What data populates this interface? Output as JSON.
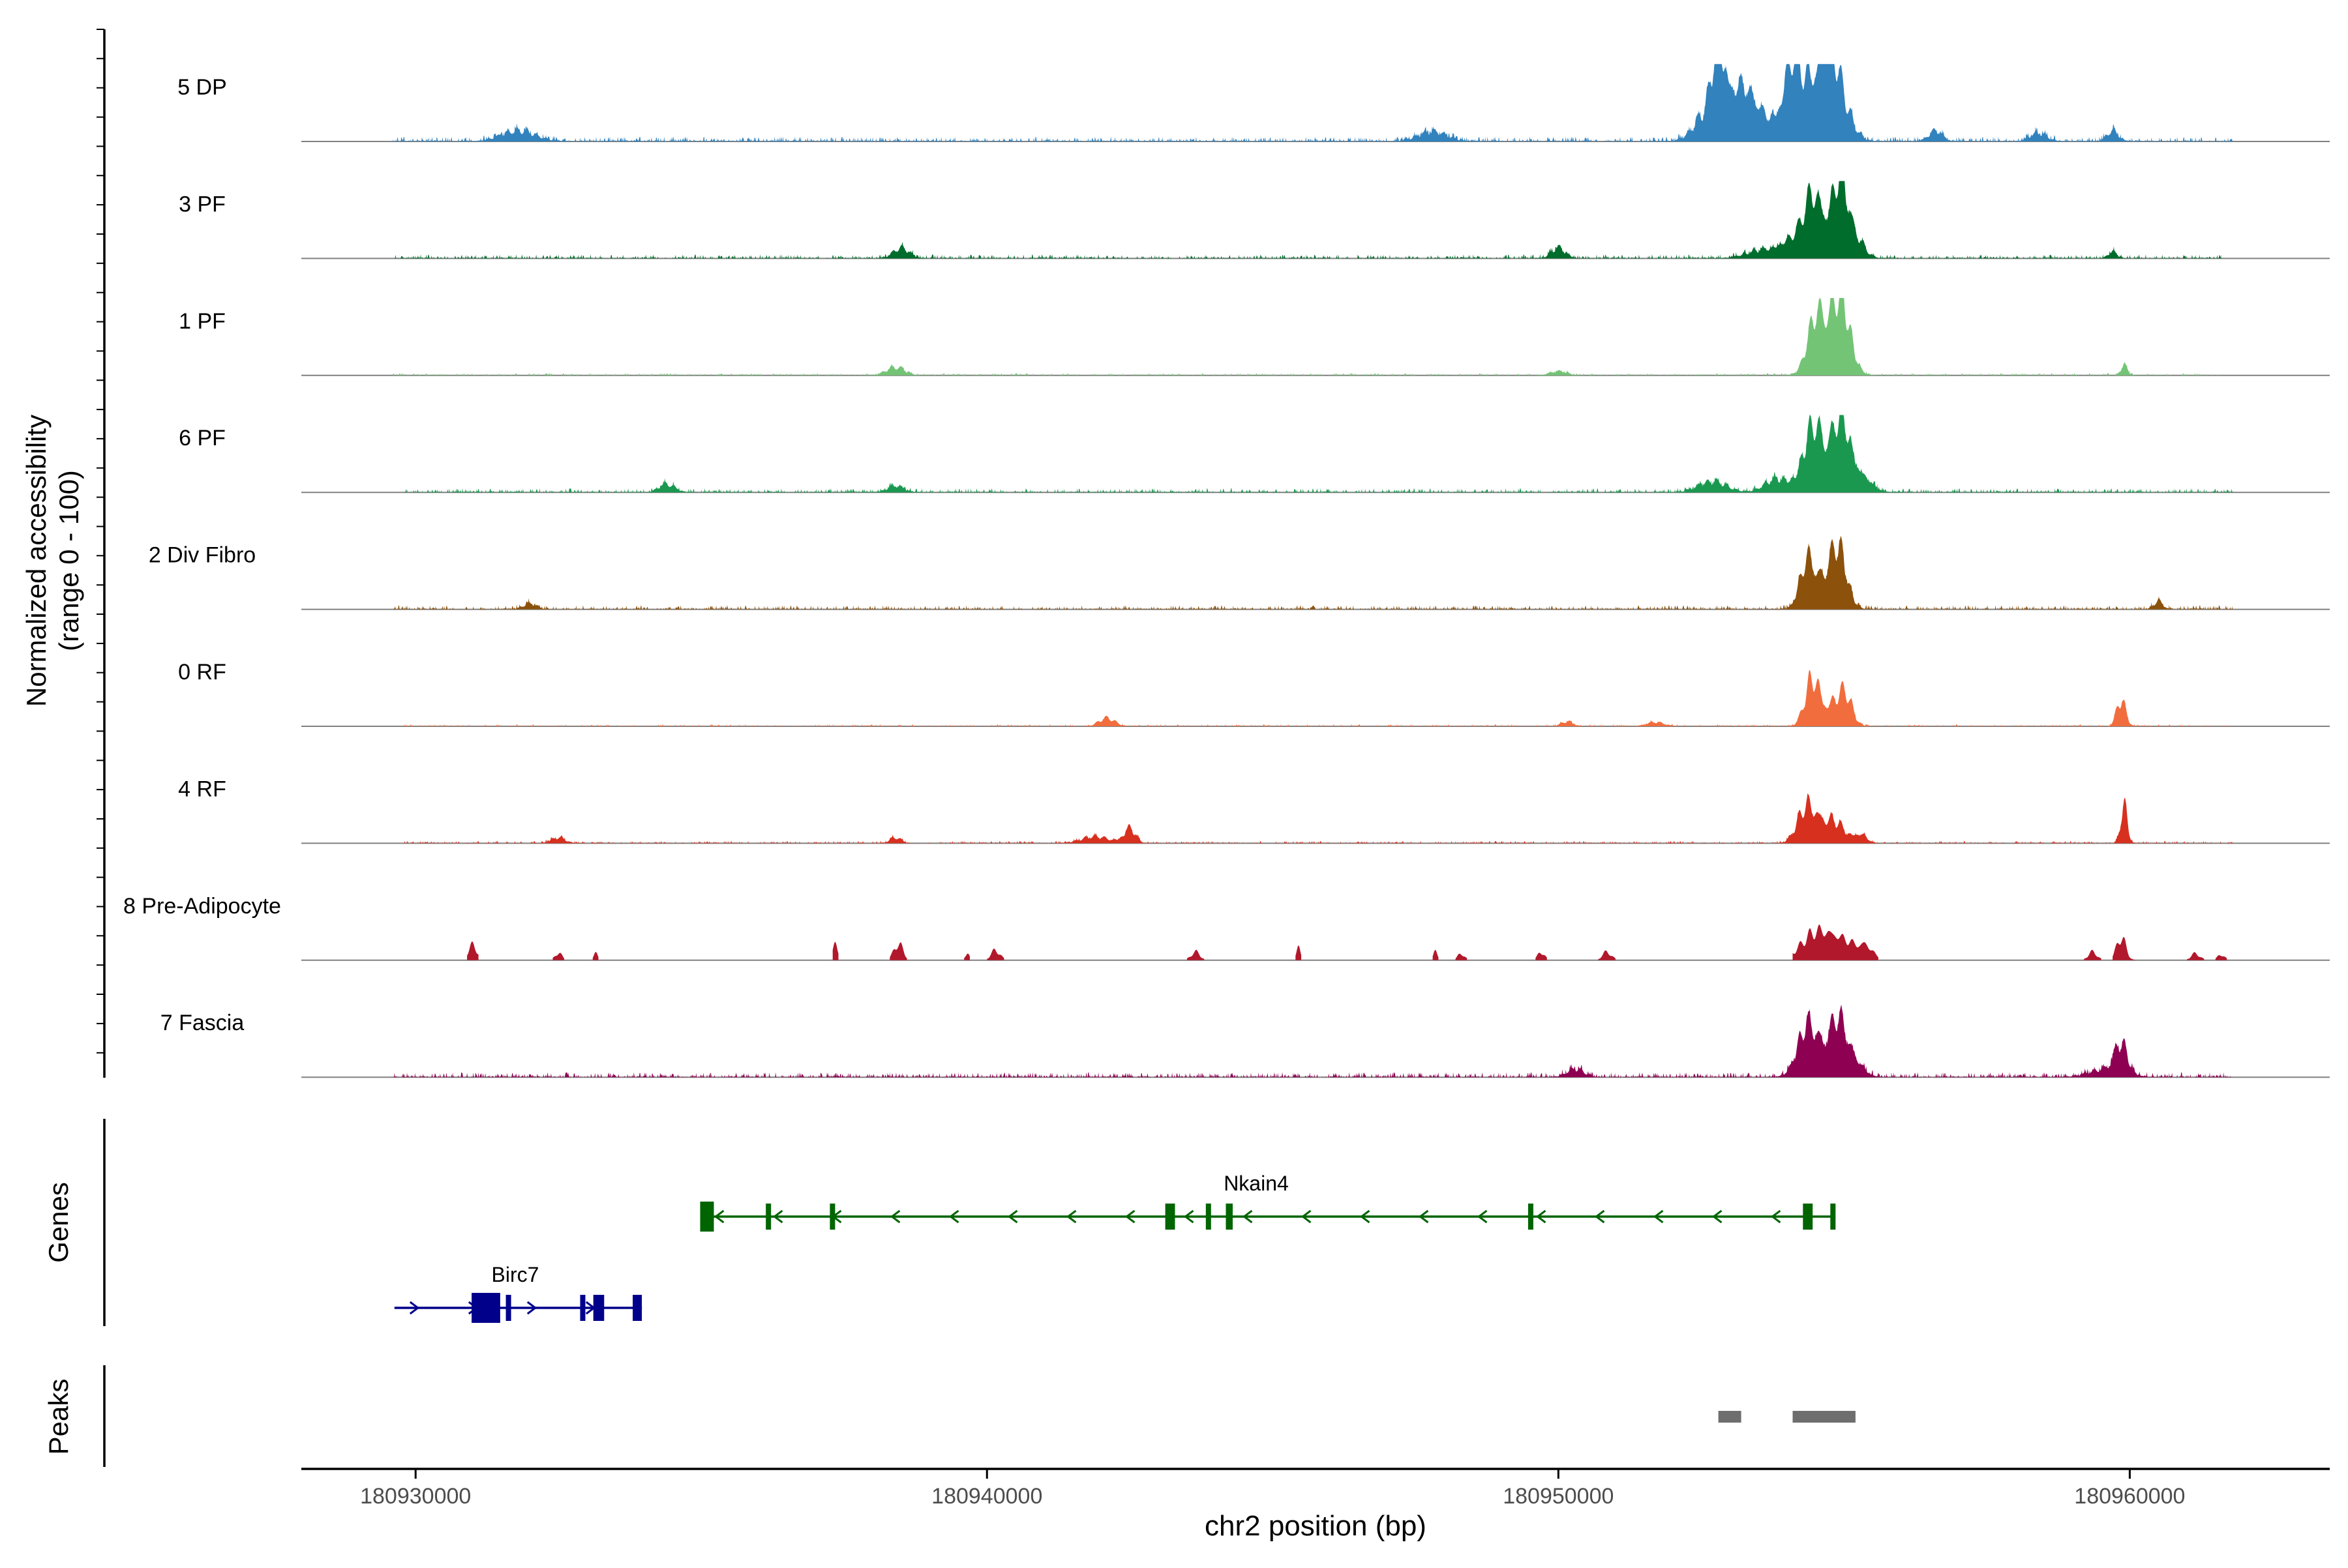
{
  "chart_data": {
    "type": "area",
    "title": "",
    "xlabel": "chr2 position (bp)",
    "ylabel_line1": "Normalized accessibility",
    "ylabel_line2": "(range 0 - 100)",
    "genes_label": "Genes",
    "peaks_label": "Peaks",
    "xlim": [
      180928000,
      180963500
    ],
    "ylim": [
      0,
      100
    ],
    "x_ticks": [
      180930000,
      180940000,
      180950000,
      180960000
    ],
    "x_tick_labels": [
      "180930000",
      "180940000",
      "180950000",
      "180960000"
    ],
    "tracks": [
      {
        "name": "5 DP",
        "color": "#3182BD",
        "noise": 6,
        "noise_density": 0.55,
        "regions": [
          [
            180929600,
            180961800
          ]
        ],
        "peaks": [
          [
            180931800,
            300,
            13
          ],
          [
            180947800,
            250,
            12
          ],
          [
            180952800,
            90,
            90
          ],
          [
            180952700,
            250,
            45
          ],
          [
            180953200,
            200,
            55
          ],
          [
            180953600,
            250,
            28
          ],
          [
            180954050,
            120,
            58
          ],
          [
            180954300,
            200,
            74
          ],
          [
            180954700,
            150,
            80
          ],
          [
            180954900,
            200,
            55
          ],
          [
            180956600,
            120,
            13
          ],
          [
            180958400,
            150,
            10
          ],
          [
            180959700,
            100,
            13
          ]
        ]
      },
      {
        "name": "3 PF",
        "color": "#006D2C",
        "noise": 5,
        "noise_density": 0.5,
        "regions": [
          [
            180929600,
            180961600
          ]
        ],
        "peaks": [
          [
            180938500,
            140,
            13
          ],
          [
            180950000,
            120,
            13
          ],
          [
            180953600,
            300,
            10
          ],
          [
            180954450,
            130,
            52
          ],
          [
            180954250,
            250,
            30
          ],
          [
            180954950,
            110,
            70
          ],
          [
            180954800,
            180,
            42
          ],
          [
            180955200,
            150,
            25
          ],
          [
            180959700,
            80,
            8
          ]
        ]
      },
      {
        "name": "1 PF",
        "color": "#74C476",
        "noise": 3,
        "noise_density": 0.45,
        "regions": [
          [
            180929600,
            180961600
          ]
        ],
        "peaks": [
          [
            180938400,
            160,
            10
          ],
          [
            180950000,
            150,
            5
          ],
          [
            180954500,
            140,
            52
          ],
          [
            180954950,
            150,
            70
          ],
          [
            180954750,
            250,
            38
          ],
          [
            180959900,
            60,
            12
          ]
        ]
      },
      {
        "name": "6 PF",
        "color": "#1A9850",
        "noise": 5,
        "noise_density": 0.5,
        "regions": [
          [
            180929800,
            180961800
          ]
        ],
        "peaks": [
          [
            180934400,
            140,
            10
          ],
          [
            180938400,
            140,
            8
          ],
          [
            180952700,
            250,
            13
          ],
          [
            180953800,
            200,
            15
          ],
          [
            180954450,
            150,
            55
          ],
          [
            180954950,
            140,
            65
          ],
          [
            180954700,
            350,
            35
          ],
          [
            180955300,
            180,
            14
          ]
        ]
      },
      {
        "name": "2 Div Fibro",
        "color": "#8C510A",
        "noise": 5,
        "noise_density": 0.5,
        "regions": [
          [
            180929600,
            180961800
          ]
        ],
        "peaks": [
          [
            180932000,
            120,
            7
          ],
          [
            180954350,
            120,
            48
          ],
          [
            180954900,
            140,
            60
          ],
          [
            180954650,
            250,
            30
          ],
          [
            180960500,
            80,
            10
          ]
        ]
      },
      {
        "name": "0 RF",
        "color": "#F16D3E",
        "noise": 2.5,
        "noise_density": 0.4,
        "regions": [
          [
            180929800,
            180961800
          ]
        ],
        "peaks": [
          [
            180942100,
            140,
            10
          ],
          [
            180950150,
            100,
            6
          ],
          [
            180951700,
            150,
            5
          ],
          [
            180954450,
            130,
            58
          ],
          [
            180954900,
            170,
            33
          ],
          [
            180955050,
            100,
            18
          ],
          [
            180959850,
            80,
            32
          ]
        ]
      },
      {
        "name": "4 RF",
        "color": "#D7301F",
        "noise": 3,
        "noise_density": 0.45,
        "regions": [
          [
            180929800,
            180961800
          ]
        ],
        "peaks": [
          [
            180932500,
            120,
            7
          ],
          [
            180938400,
            100,
            7
          ],
          [
            180941900,
            250,
            8
          ],
          [
            180942500,
            100,
            18
          ],
          [
            180954350,
            160,
            45
          ],
          [
            180954800,
            200,
            28
          ],
          [
            180955300,
            100,
            10
          ],
          [
            180959900,
            60,
            45
          ]
        ]
      },
      {
        "name": "8 Pre-Adipocyte",
        "color": "#B2182B",
        "noise": 0,
        "noise_density": 0,
        "regions": [
          [
            180930900,
            180931100
          ],
          [
            180932400,
            180932600
          ],
          [
            180933100,
            180933200
          ],
          [
            180937300,
            180937400
          ],
          [
            180938300,
            180938600
          ],
          [
            180939600,
            180939700
          ],
          [
            180940000,
            180940300
          ],
          [
            180943500,
            180943800
          ],
          [
            180945400,
            180945500
          ],
          [
            180947800,
            180947900
          ],
          [
            180948200,
            180948400
          ],
          [
            180948600,
            180948700
          ],
          [
            180949600,
            180949800
          ],
          [
            180950700,
            180951000
          ],
          [
            180954100,
            180955600
          ],
          [
            180959200,
            180959500
          ],
          [
            180959700,
            180960100
          ],
          [
            180960700,
            180960800
          ],
          [
            180961000,
            180961300
          ],
          [
            180961500,
            180961700
          ]
        ],
        "peaks": [
          [
            180931000,
            80,
            18
          ],
          [
            180932500,
            60,
            9
          ],
          [
            180933150,
            40,
            8
          ],
          [
            180937350,
            50,
            18
          ],
          [
            180938450,
            80,
            20
          ],
          [
            180939650,
            40,
            8
          ],
          [
            180940150,
            80,
            12
          ],
          [
            180943650,
            80,
            10
          ],
          [
            180945450,
            40,
            14
          ],
          [
            180947850,
            40,
            10
          ],
          [
            180948300,
            60,
            8
          ],
          [
            180949700,
            60,
            10
          ],
          [
            180950850,
            80,
            10
          ],
          [
            180954500,
            250,
            32
          ],
          [
            180955000,
            250,
            22
          ],
          [
            180955400,
            120,
            12
          ],
          [
            180959350,
            80,
            10
          ],
          [
            180959850,
            80,
            28
          ],
          [
            180961150,
            80,
            8
          ],
          [
            180961600,
            60,
            7
          ]
        ]
      },
      {
        "name": "7 Fascia",
        "color": "#8E0152",
        "noise": 6,
        "noise_density": 0.55,
        "regions": [
          [
            180929600,
            180961800
          ]
        ],
        "peaks": [
          [
            180954350,
            160,
            50
          ],
          [
            180954900,
            140,
            55
          ],
          [
            180954650,
            300,
            25
          ],
          [
            180955200,
            150,
            15
          ],
          [
            180959850,
            110,
            35
          ],
          [
            180959600,
            300,
            10
          ],
          [
            180950300,
            150,
            10
          ]
        ]
      }
    ],
    "genes": [
      {
        "name": "Nkain4",
        "strand": "-",
        "color": "#006400",
        "start": 180934980,
        "end": 180954850,
        "exons": [
          [
            180934980,
            180935220
          ],
          [
            180936130,
            180936190
          ],
          [
            180937250,
            180937290
          ],
          [
            180943120,
            180943290
          ],
          [
            180943830,
            180943880
          ],
          [
            180944180,
            180944300
          ],
          [
            180949470,
            180949560
          ],
          [
            180954280,
            180954450
          ],
          [
            180954760,
            180954850
          ]
        ]
      },
      {
        "name": "Birc7",
        "strand": "+",
        "color": "#00008B",
        "start": 180929630,
        "end": 180933960,
        "exons": [
          [
            180930980,
            180931480
          ],
          [
            180931580,
            180931630
          ],
          [
            180932880,
            180932920
          ],
          [
            180933110,
            180933300
          ],
          [
            180933800,
            180933960
          ]
        ]
      }
    ],
    "peaks_regions": [
      [
        180952800,
        180953200
      ],
      [
        180954100,
        180955200
      ]
    ]
  }
}
